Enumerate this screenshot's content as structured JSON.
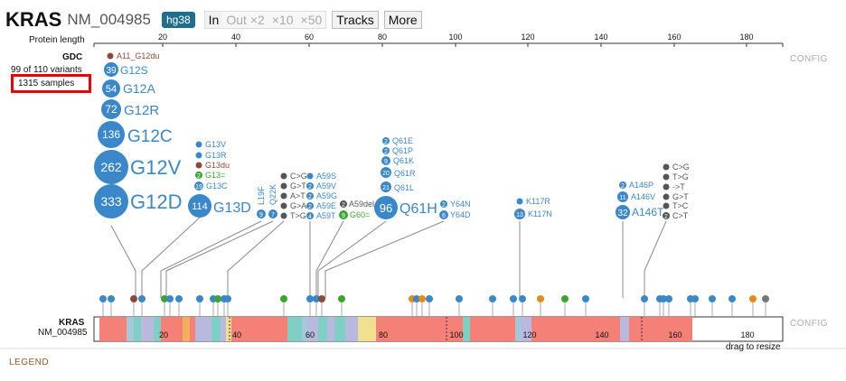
{
  "header": {
    "gene": "KRAS",
    "transcript": "NM_004985",
    "genome": "hg38",
    "buttons": {
      "in": "In",
      "out2": "Out ×2",
      "x10": "×10",
      "x50": "×50",
      "tracks": "Tracks",
      "more": "More"
    }
  },
  "axis": {
    "label": "Protein length",
    "ticks": [
      "20",
      "40",
      "60",
      "80",
      "100",
      "120",
      "140",
      "160",
      "180"
    ]
  },
  "track": {
    "source": "GDC",
    "variants_text": "99 of 110 variants",
    "samples_text": "1315 samples",
    "config": "CONFIG"
  },
  "mutations": [
    {
      "count": "39",
      "label": "G12S",
      "color": "#3a87c9"
    },
    {
      "count": "54",
      "label": "G12A",
      "color": "#3a87c9"
    },
    {
      "count": "72",
      "label": "G12R",
      "color": "#3a87c9"
    },
    {
      "count": "136",
      "label": "G12C",
      "color": "#3a87c9"
    },
    {
      "count": "262",
      "label": "G12V",
      "color": "#3a87c9"
    },
    {
      "count": "333",
      "label": "G12D",
      "color": "#3a87c9"
    },
    {
      "count": "114",
      "label": "G13D",
      "color": "#3a87c9"
    },
    {
      "count": "96",
      "label": "Q61H",
      "color": "#3a87c9"
    },
    {
      "count": "32",
      "label": "A146T",
      "color": "#3a87c9"
    }
  ],
  "small_labels": {
    "a11": "A11_G12du",
    "g13": [
      "G13V",
      "G13R",
      "G13du",
      "G13=",
      "G13C"
    ],
    "g13c_count": "19",
    "g13eq_count": "2",
    "l19f": "L19F",
    "q22k": "Q22K",
    "l19f_count": "9",
    "q22k_count": "7",
    "subs": [
      "C>G",
      "G>T",
      "A>T",
      "G>A",
      "T>G"
    ],
    "a59": [
      "A59S",
      "A59V",
      "A59G",
      "A59E",
      "A59T"
    ],
    "a59_counts": [
      "2",
      "2",
      "2",
      "2",
      "4"
    ],
    "a59del": "A59del",
    "g60": "G60=",
    "g60_count": "9",
    "q61": [
      "Q61E",
      "Q61P",
      "Q61K",
      "Q61R",
      "Q61L"
    ],
    "q61_counts": [
      "2",
      "2",
      "9",
      "20",
      "21"
    ],
    "y64": [
      "Y64N",
      "Y64D"
    ],
    "y64_counts": [
      "2",
      "6"
    ],
    "k117": [
      "K117R",
      "K117N"
    ],
    "k117n_count": "13",
    "a146": [
      "A146P",
      "A146V"
    ],
    "a146_counts": [
      "2",
      "11"
    ],
    "right_subs": [
      "C>G",
      "T>G",
      "->T",
      "G>T",
      "T>C",
      "C>T"
    ],
    "ct_count": "2"
  },
  "colors": {
    "missense": "#3a87c9",
    "inframe": "#8b4a3a",
    "silent": "#3aa62e",
    "splice": "#555",
    "frameshift": "#e88a1a"
  },
  "domain_track": {
    "gene": "KRAS",
    "transcript": "NM_004985",
    "config": "CONFIG",
    "resize": "drag to resize",
    "ticks": [
      "20",
      "40",
      "60",
      "80",
      "100",
      "120",
      "140",
      "160",
      "180"
    ]
  },
  "legend": "LEGEND"
}
